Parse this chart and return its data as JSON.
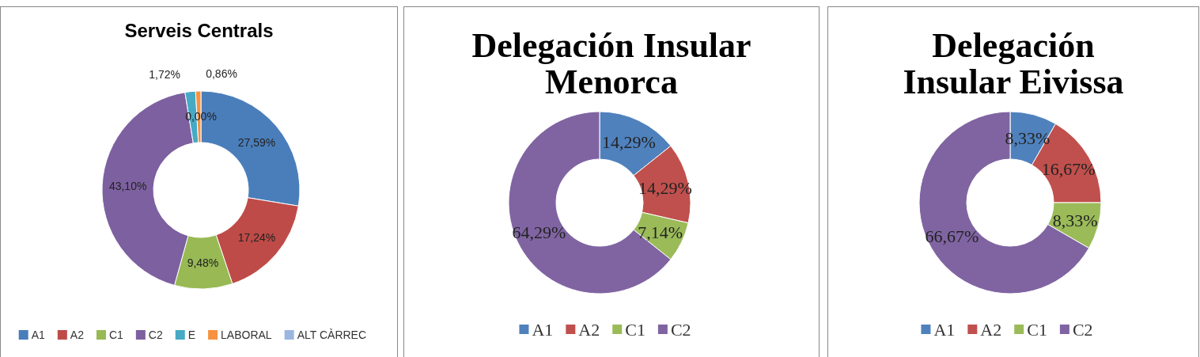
{
  "chart_data": [
    {
      "type": "donut",
      "title": "Serveis Centrals",
      "categories": [
        "A1",
        "A2",
        "C1",
        "C2",
        "E",
        "LABORAL",
        "ALT CÀRREC"
      ],
      "values": [
        27.59,
        17.24,
        9.48,
        43.1,
        1.72,
        0.86,
        0.0
      ],
      "colors": [
        "#4a7ebb",
        "#be4b48",
        "#98b954",
        "#7d60a0",
        "#46aac5",
        "#f69240",
        "#9bb7e0"
      ],
      "value_labels": [
        "27,59%",
        "17,24%",
        "9,48%",
        "43,10%",
        "1,72%",
        "0,86%",
        "0,00%"
      ],
      "legend": "bottom"
    },
    {
      "type": "donut",
      "title": "Delegación Insular Menorca",
      "categories": [
        "A1",
        "A2",
        "C1",
        "C2"
      ],
      "values": [
        14.29,
        14.29,
        7.14,
        64.29
      ],
      "colors": [
        "#4f81bd",
        "#c0504d",
        "#9bbb59",
        "#8064a2"
      ],
      "value_labels": [
        "14,29%",
        "14,29%",
        "7,14%",
        "64,29%"
      ],
      "legend": "bottom"
    },
    {
      "type": "donut",
      "title": "Delegación Insular Eivissa",
      "categories": [
        "A1",
        "A2",
        "C1",
        "C2"
      ],
      "values": [
        8.33,
        16.67,
        8.33,
        66.67
      ],
      "colors": [
        "#4f81bd",
        "#c0504d",
        "#9bbb59",
        "#8064a2"
      ],
      "value_labels": [
        "8,33%",
        "16,67%",
        "8,33%",
        "66,67%"
      ],
      "legend": "bottom"
    }
  ]
}
